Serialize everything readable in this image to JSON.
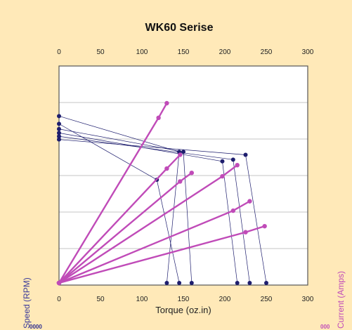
{
  "chart_data": {
    "type": "line",
    "title": "WK60 Serise",
    "xlabel": "Torque (oz.in)",
    "ylabel_left": "Speed (RPM)",
    "ylabel_right": "Current (Amps)",
    "left_corner_label": "0000",
    "right_corner_label": "000",
    "xlim": [
      0,
      300
    ],
    "x_ticks": [
      "0",
      "50",
      "100",
      "150",
      "200",
      "250",
      "300"
    ],
    "y_normalized_range": [
      0,
      1
    ],
    "grid": true,
    "speed_color": "#1E1E6E",
    "current_color": "#C04BB8",
    "speed_series": [
      {
        "points": [
          [
            0,
            0.97
          ],
          [
            145,
            0.762
          ],
          [
            130,
            0.0
          ]
        ]
      },
      {
        "points": [
          [
            0,
            0.925
          ],
          [
            118,
            0.6
          ],
          [
            145,
            0.0
          ]
        ]
      },
      {
        "points": [
          [
            0,
            0.895
          ],
          [
            150,
            0.762
          ],
          [
            160,
            0.0
          ]
        ]
      },
      {
        "points": [
          [
            0,
            0.872
          ],
          [
            197,
            0.707
          ],
          [
            215,
            0.0
          ]
        ]
      },
      {
        "points": [
          [
            0,
            0.852
          ],
          [
            210,
            0.717
          ],
          [
            230,
            0.0
          ]
        ]
      },
      {
        "points": [
          [
            0,
            0.834
          ],
          [
            225,
            0.745
          ],
          [
            250,
            0.0
          ]
        ]
      }
    ],
    "current_series": [
      {
        "points": [
          [
            0,
            0.0
          ],
          [
            120,
            0.96
          ],
          [
            130,
            1.045
          ]
        ]
      },
      {
        "points": [
          [
            0,
            0.0
          ],
          [
            130,
            0.665
          ],
          [
            146,
            0.745
          ]
        ]
      },
      {
        "points": [
          [
            0,
            0.0
          ],
          [
            146,
            0.59
          ],
          [
            160,
            0.64
          ]
        ]
      },
      {
        "points": [
          [
            0,
            0.0
          ],
          [
            197,
            0.62
          ],
          [
            215,
            0.685
          ]
        ]
      },
      {
        "points": [
          [
            0,
            0.0
          ],
          [
            210,
            0.42
          ],
          [
            230,
            0.475
          ]
        ]
      },
      {
        "points": [
          [
            0,
            0.0
          ],
          [
            225,
            0.295
          ],
          [
            248,
            0.33
          ]
        ]
      }
    ]
  }
}
